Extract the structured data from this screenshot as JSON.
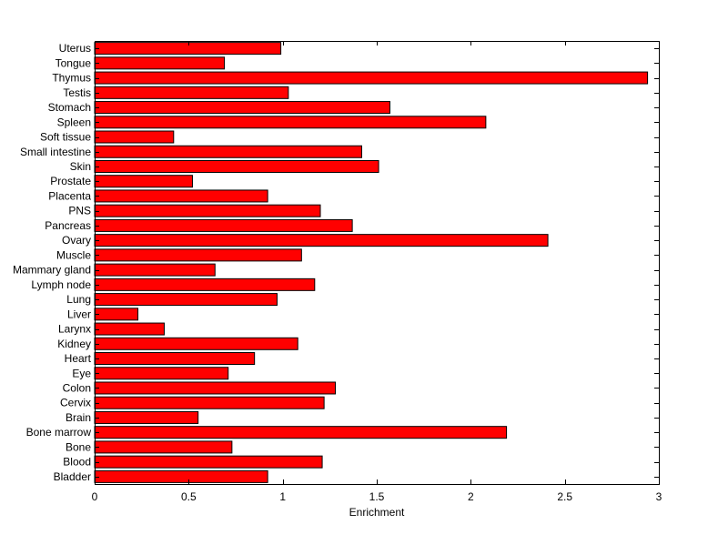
{
  "chart_data": {
    "type": "bar",
    "orientation": "horizontal",
    "title": "",
    "xlabel": "Enrichment",
    "ylabel": "",
    "xlim": [
      0,
      3
    ],
    "xticks": [
      0,
      0.5,
      1,
      1.5,
      2,
      2.5,
      3
    ],
    "xtick_labels": [
      "0",
      "0.5",
      "1",
      "1.5",
      "2",
      "2.5",
      "3"
    ],
    "grid": false,
    "bar_color": "#ff0000",
    "bar_edge_color": "#000000",
    "categories": [
      "Uterus",
      "Tongue",
      "Thymus",
      "Testis",
      "Stomach",
      "Spleen",
      "Soft tissue",
      "Small intestine",
      "Skin",
      "Prostate",
      "Placenta",
      "PNS",
      "Pancreas",
      "Ovary",
      "Muscle",
      "Mammary gland",
      "Lymph node",
      "Lung",
      "Liver",
      "Larynx",
      "Kidney",
      "Heart",
      "Eye",
      "Colon",
      "Cervix",
      "Brain",
      "Bone marrow",
      "Bone",
      "Blood",
      "Bladder"
    ],
    "values": [
      0.99,
      0.69,
      2.94,
      1.03,
      1.57,
      2.08,
      0.42,
      1.42,
      1.51,
      0.52,
      0.92,
      1.2,
      1.37,
      2.41,
      1.1,
      0.64,
      1.17,
      0.97,
      0.23,
      0.37,
      1.08,
      0.85,
      0.71,
      1.28,
      1.22,
      0.55,
      2.19,
      0.73,
      1.21,
      0.92
    ]
  }
}
